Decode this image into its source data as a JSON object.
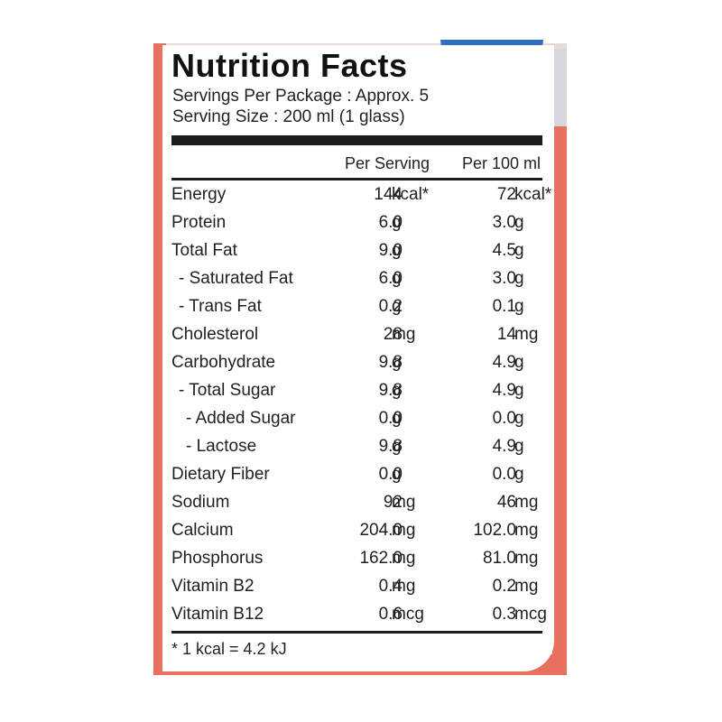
{
  "label": {
    "title": "Nutrition Facts",
    "servings_per_package": "Servings Per Package : Approx. 5",
    "serving_size": "Serving Size : 200 ml (1 glass)",
    "columns": [
      "Per Serving",
      "Per 100 ml"
    ],
    "rows": [
      {
        "name": "Energy",
        "per_serving": "144",
        "unit_serving": "kcal*",
        "per_100ml": "72",
        "unit_100ml": "kcal*"
      },
      {
        "name": "Protein",
        "per_serving": "6.0",
        "unit_serving": "g",
        "per_100ml": "3.0",
        "unit_100ml": "g"
      },
      {
        "name": "Total Fat",
        "per_serving": "9.0",
        "unit_serving": "g",
        "per_100ml": "4.5",
        "unit_100ml": "g"
      },
      {
        "name": "- Saturated Fat",
        "per_serving": "6.0",
        "unit_serving": "g",
        "per_100ml": "3.0",
        "unit_100ml": "g"
      },
      {
        "name": "- Trans Fat",
        "per_serving": "0.2",
        "unit_serving": "g",
        "per_100ml": "0.1",
        "unit_100ml": "g"
      },
      {
        "name": "Cholesterol",
        "per_serving": "28",
        "unit_serving": "mg",
        "per_100ml": "14",
        "unit_100ml": "mg"
      },
      {
        "name": "Carbohydrate",
        "per_serving": "9.8",
        "unit_serving": "g",
        "per_100ml": "4.9",
        "unit_100ml": "g"
      },
      {
        "name": "- Total Sugar",
        "per_serving": "9.8",
        "unit_serving": "g",
        "per_100ml": "4.9",
        "unit_100ml": "g"
      },
      {
        "name": "- Added Sugar",
        "per_serving": "0.0",
        "unit_serving": "g",
        "per_100ml": "0.0",
        "unit_100ml": "g"
      },
      {
        "name": "- Lactose",
        "per_serving": "9.8",
        "unit_serving": "g",
        "per_100ml": "4.9",
        "unit_100ml": "g"
      },
      {
        "name": "Dietary Fiber",
        "per_serving": "0.0",
        "unit_serving": "g",
        "per_100ml": "0.0",
        "unit_100ml": "g"
      },
      {
        "name": "Sodium",
        "per_serving": "92",
        "unit_serving": "mg",
        "per_100ml": "46",
        "unit_100ml": "mg"
      },
      {
        "name": "Calcium",
        "per_serving": "204.0",
        "unit_serving": "mg",
        "per_100ml": "102.0",
        "unit_100ml": "mg"
      },
      {
        "name": "Phosphorus",
        "per_serving": "162.0",
        "unit_serving": "mg",
        "per_100ml": "81.0",
        "unit_100ml": "mg"
      },
      {
        "name": "Vitamin B2",
        "per_serving": "0.4",
        "unit_serving": "mg",
        "per_100ml": "0.2",
        "unit_100ml": "mg"
      },
      {
        "name": "Vitamin B12",
        "per_serving": "0.6",
        "unit_serving": "mcg",
        "per_100ml": "0.3",
        "unit_100ml": "mcg"
      }
    ],
    "footnote": "* 1 kcal = 4.2 kJ"
  },
  "colors": {
    "text": "#1a1a1a",
    "package_red": "#e8705f",
    "package_blue": "#2e6fc0"
  }
}
